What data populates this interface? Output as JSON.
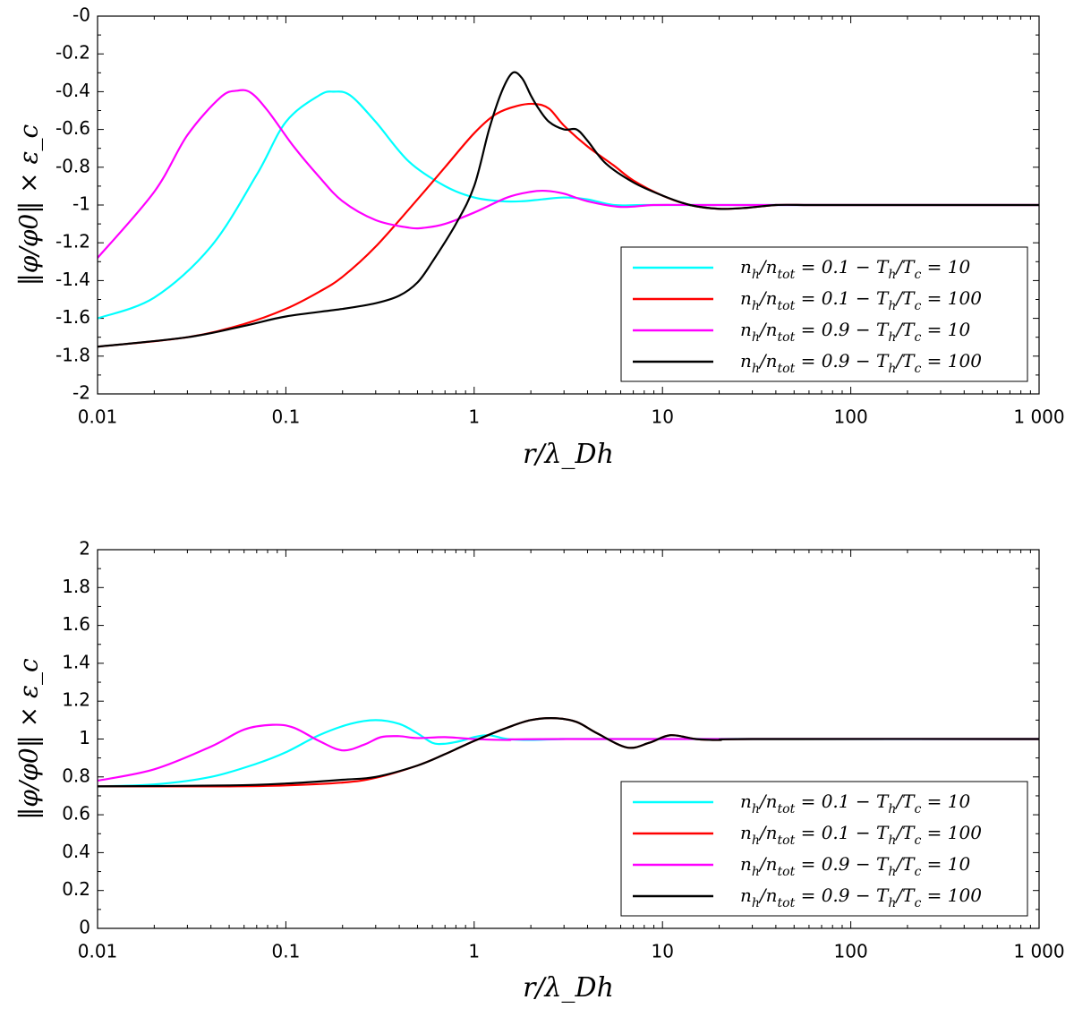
{
  "chart_data": [
    {
      "type": "line",
      "xscale": "log",
      "xlim": [
        0.01,
        1000
      ],
      "ylim": [
        -2,
        0
      ],
      "xlabel": "r/λ_Dh",
      "ylabel": "‖φ/φ0‖ × ε_c",
      "xticklabels": [
        "0.01",
        "0.1",
        "1",
        "10",
        "100",
        "1 000"
      ],
      "yticks": [
        0,
        -0.2,
        -0.4,
        -0.6,
        -0.8,
        -1,
        -1.2,
        -1.4,
        -1.6,
        -1.8,
        -2
      ],
      "yticklabels": [
        "-0",
        "-0.2",
        "-0.4",
        "-0.6",
        "-0.8",
        "-1",
        "-1.2",
        "-1.4",
        "-1.6",
        "-1.8",
        "-2"
      ],
      "legend_position": "lower-right",
      "series": [
        {
          "name": "n_h/n_tot = 0.1 − T_h/T_c = 10",
          "color": "#00ffff",
          "x": [
            0.01,
            0.02,
            0.04,
            0.07,
            0.1,
            0.15,
            0.18,
            0.22,
            0.3,
            0.45,
            0.7,
            1.0,
            1.4,
            1.8,
            2.3,
            3.0,
            4.0,
            5.5,
            8,
            20,
            1000
          ],
          "y": [
            -1.6,
            -1.49,
            -1.22,
            -0.84,
            -0.56,
            -0.42,
            -0.4,
            -0.42,
            -0.56,
            -0.77,
            -0.9,
            -0.96,
            -0.98,
            -0.98,
            -0.97,
            -0.96,
            -0.97,
            -1.0,
            -1.0,
            -1.0,
            -1.0
          ]
        },
        {
          "name": "n_h/n_tot = 0.1 − T_h/T_c = 100",
          "color": "#ff0000",
          "x": [
            0.01,
            0.03,
            0.06,
            0.1,
            0.15,
            0.2,
            0.3,
            0.5,
            0.7,
            1.0,
            1.3,
            1.7,
            2.1,
            2.5,
            3.0,
            4.0,
            5.5,
            7,
            10,
            14,
            20,
            28,
            40,
            60,
            100,
            1000
          ],
          "y": [
            -1.75,
            -1.7,
            -1.63,
            -1.55,
            -1.46,
            -1.38,
            -1.22,
            -0.97,
            -0.8,
            -0.62,
            -0.52,
            -0.475,
            -0.465,
            -0.49,
            -0.58,
            -0.69,
            -0.79,
            -0.87,
            -0.95,
            -1.0,
            -1.02,
            -1.015,
            -1.0,
            -1.0,
            -1.0,
            -1.0
          ]
        },
        {
          "name": "n_h/n_tot = 0.9 − T_h/T_c = 10",
          "color": "#ff00ff",
          "x": [
            0.01,
            0.02,
            0.03,
            0.045,
            0.055,
            0.065,
            0.08,
            0.11,
            0.15,
            0.2,
            0.3,
            0.45,
            0.55,
            0.7,
            1.0,
            1.5,
            2.0,
            2.4,
            3.0,
            4.0,
            6.0,
            9.0,
            15,
            30,
            1000
          ],
          "y": [
            -1.28,
            -0.93,
            -0.63,
            -0.43,
            -0.395,
            -0.405,
            -0.5,
            -0.69,
            -0.85,
            -0.98,
            -1.08,
            -1.12,
            -1.12,
            -1.1,
            -1.04,
            -0.96,
            -0.93,
            -0.925,
            -0.94,
            -0.98,
            -1.01,
            -1.0,
            -1.0,
            -1.0,
            -1.0
          ]
        },
        {
          "name": "n_h/n_tot = 0.9 − T_h/T_c = 100",
          "color": "#000000",
          "x": [
            0.01,
            0.03,
            0.06,
            0.1,
            0.2,
            0.3,
            0.4,
            0.5,
            0.6,
            0.8,
            1.0,
            1.2,
            1.4,
            1.6,
            1.8,
            2.0,
            2.2,
            2.5,
            3.0,
            3.5,
            4.0,
            5.0,
            7.0,
            10,
            14,
            20,
            28,
            40,
            60,
            100,
            1000
          ],
          "y": [
            -1.75,
            -1.7,
            -1.64,
            -1.59,
            -1.55,
            -1.52,
            -1.48,
            -1.41,
            -1.3,
            -1.1,
            -0.9,
            -0.6,
            -0.4,
            -0.3,
            -0.33,
            -0.42,
            -0.49,
            -0.56,
            -0.6,
            -0.6,
            -0.66,
            -0.78,
            -0.88,
            -0.95,
            -1.0,
            -1.02,
            -1.015,
            -1.0,
            -1.0,
            -1.0,
            -1.0
          ]
        }
      ]
    },
    {
      "type": "line",
      "xscale": "log",
      "xlim": [
        0.01,
        1000
      ],
      "ylim": [
        0,
        2
      ],
      "xlabel": "r/λ_Dh",
      "ylabel": "‖φ/φ0‖ × ε_c",
      "xticklabels": [
        "0.01",
        "0.1",
        "1",
        "10",
        "100",
        "1 000"
      ],
      "yticks": [
        0,
        0.2,
        0.4,
        0.6,
        0.8,
        1,
        1.2,
        1.4,
        1.6,
        1.8,
        2
      ],
      "yticklabels": [
        "0",
        "0.2",
        "0.4",
        "0.6",
        "0.8",
        "1",
        "1.2",
        "1.4",
        "1.6",
        "1.8",
        "2"
      ],
      "legend_position": "lower-right",
      "series": [
        {
          "name": "n_h/n_tot = 0.1 − T_h/T_c = 10",
          "color": "#00ffff",
          "x": [
            0.01,
            0.02,
            0.04,
            0.07,
            0.1,
            0.15,
            0.22,
            0.3,
            0.4,
            0.5,
            0.6,
            0.7,
            0.85,
            1.0,
            1.2,
            1.5,
            2.0,
            3.0,
            5.0,
            1000
          ],
          "y": [
            0.75,
            0.76,
            0.8,
            0.87,
            0.93,
            1.02,
            1.08,
            1.1,
            1.08,
            1.03,
            0.98,
            0.975,
            0.99,
            1.01,
            1.02,
            1.0,
            0.995,
            1.0,
            1.0,
            1.0
          ]
        },
        {
          "name": "n_h/n_tot = 0.1 − T_h/T_c = 100",
          "color": "#ff0000",
          "x": [
            0.01,
            0.05,
            0.1,
            0.2,
            0.3,
            0.5,
            0.7,
            1.0,
            1.5,
            2.0,
            2.7,
            3.5,
            4.5,
            6.5,
            8.5,
            11,
            15,
            20,
            30,
            1000
          ],
          "y": [
            0.75,
            0.75,
            0.755,
            0.77,
            0.795,
            0.86,
            0.92,
            0.99,
            1.06,
            1.1,
            1.11,
            1.09,
            1.03,
            0.955,
            0.98,
            1.02,
            1.0,
            0.995,
            1.0,
            1.0
          ]
        },
        {
          "name": "n_h/n_tot = 0.9 − T_h/T_c = 10",
          "color": "#ff00ff",
          "x": [
            0.01,
            0.02,
            0.04,
            0.06,
            0.085,
            0.11,
            0.15,
            0.2,
            0.26,
            0.32,
            0.4,
            0.5,
            0.7,
            1.0,
            1.5,
            3.0,
            1000
          ],
          "y": [
            0.78,
            0.84,
            0.96,
            1.05,
            1.075,
            1.06,
            0.99,
            0.94,
            0.97,
            1.01,
            1.015,
            1.005,
            1.01,
            1.0,
            0.995,
            1.0,
            1.0
          ]
        },
        {
          "name": "n_h/n_tot = 0.9 − T_h/T_c = 100",
          "color": "#000000",
          "x": [
            0.01,
            0.05,
            0.1,
            0.2,
            0.3,
            0.5,
            0.7,
            1.0,
            1.5,
            2.0,
            2.7,
            3.5,
            4.5,
            6.5,
            8.5,
            11,
            15,
            20,
            30,
            1000
          ],
          "y": [
            0.75,
            0.755,
            0.765,
            0.785,
            0.8,
            0.86,
            0.92,
            0.99,
            1.06,
            1.1,
            1.11,
            1.09,
            1.03,
            0.955,
            0.98,
            1.02,
            1.0,
            0.995,
            1.0,
            1.0
          ]
        }
      ]
    }
  ]
}
